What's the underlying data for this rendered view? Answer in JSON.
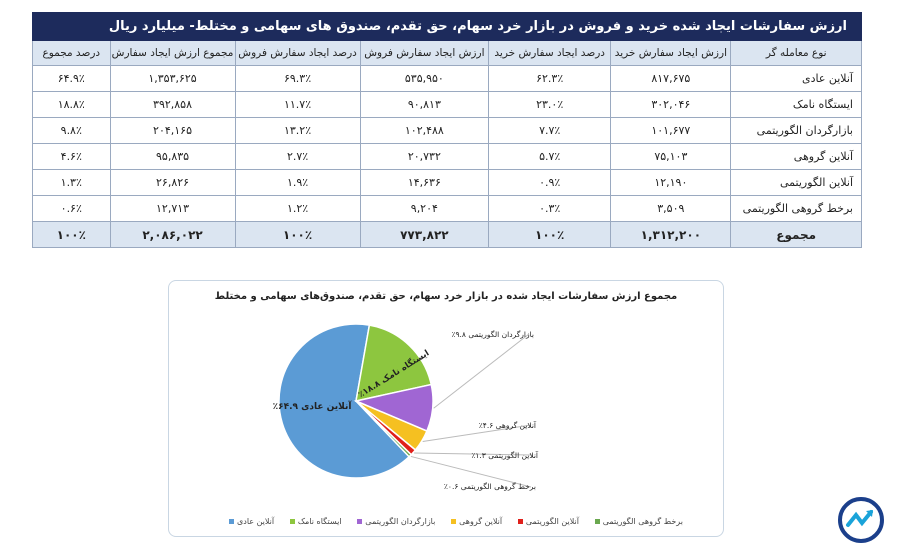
{
  "table": {
    "title": "ارزش سفارشات ایجاد شده خرید و فروش در بازار خرد سهام، حق تقدم، صندوق های سهامی و مختلط- میلیارد ریال",
    "headers": [
      "نوع معامله گر",
      "ارزش ایجاد سفارش خرید",
      "درصد ایجاد سفارش خرید",
      "ارزش ایجاد سفارش فروش",
      "درصد ایجاد سفارش فروش",
      "مجموع ارزش ایجاد سفارش",
      "درصد مجموع"
    ],
    "rows": [
      [
        "آنلاین عادی",
        "۸۱۷,۶۷۵",
        "۶۲.۳٪",
        "۵۳۵,۹۵۰",
        "۶۹.۳٪",
        "۱,۳۵۳,۶۲۵",
        "۶۴.۹٪"
      ],
      [
        "ایستگاه نامک",
        "۳۰۲,۰۴۶",
        "۲۳.۰٪",
        "۹۰,۸۱۳",
        "۱۱.۷٪",
        "۳۹۲,۸۵۸",
        "۱۸.۸٪"
      ],
      [
        "بازارگردان الگوریتمی",
        "۱۰۱,۶۷۷",
        "۷.۷٪",
        "۱۰۲,۴۸۸",
        "۱۳.۲٪",
        "۲۰۴,۱۶۵",
        "۹.۸٪"
      ],
      [
        "آنلاین گروهی",
        "۷۵,۱۰۳",
        "۵.۷٪",
        "۲۰,۷۳۲",
        "۲.۷٪",
        "۹۵,۸۳۵",
        "۴.۶٪"
      ],
      [
        "آنلاین الگوریتمی",
        "۱۲,۱۹۰",
        "۰.۹٪",
        "۱۴,۶۳۶",
        "۱.۹٪",
        "۲۶,۸۲۶",
        "۱.۳٪"
      ],
      [
        "برخط گروهی الگوریتمی",
        "۳,۵۰۹",
        "۰.۳٪",
        "۹,۲۰۴",
        "۱.۲٪",
        "۱۲,۷۱۳",
        "۰.۶٪"
      ]
    ],
    "total": [
      "مجموع",
      "۱,۳۱۲,۲۰۰",
      "۱۰۰٪",
      "۷۷۳,۸۲۲",
      "۱۰۰٪",
      "۲,۰۸۶,۰۲۲",
      "۱۰۰٪"
    ]
  },
  "chart_data": {
    "type": "pie",
    "title": "مجموع ارزش سفارشات ایجاد شده در بازار خرد سهام، حق تقدم، صندوق‌های سهامی و مختلط",
    "categories": [
      "آنلاین عادی",
      "ایستگاه نامک",
      "بازارگردان الگوریتمی",
      "آنلاین گروهی",
      "آنلاین الگوریتمی",
      "برخط گروهی الگوریتمی"
    ],
    "values": [
      64.9,
      18.8,
      9.8,
      4.6,
      1.3,
      0.6
    ],
    "data_labels": [
      "آنلاین عادی ۶۴.۹٪",
      "ایستگاه نامک ۱۸.۸٪",
      "بازارگردان الگوریتمی ۹.۸٪",
      "آنلاین گروهی ۴.۶٪",
      "آنلاین الگوریتمی ۱.۳٪",
      "برخط گروهی الگوریتمی ۰.۶٪"
    ],
    "colors": [
      "#5b9bd5",
      "#8dc63f",
      "#a066d3",
      "#f5c021",
      "#e0201b",
      "#6aa84f"
    ],
    "legend_position": "bottom"
  },
  "logo": {
    "colors": [
      "#1b3f8b",
      "#1aa3d9"
    ]
  }
}
